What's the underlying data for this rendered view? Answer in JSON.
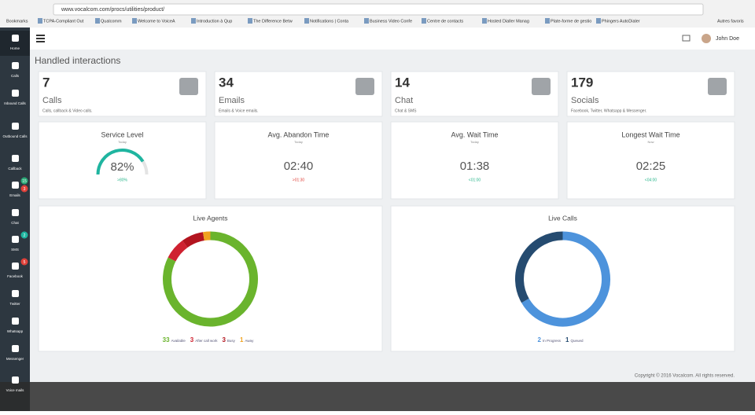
{
  "browser": {
    "url": "www.vocalcom.com/procs/utilities/product/",
    "bookmarks": [
      "Bookmarks",
      "TCPA-Compliant Out",
      "Qualcomm",
      "Welcome to VoiceA",
      "Introduction à Qup",
      "The Difference Betw",
      "Notifications | Conta",
      "Business Video Confe",
      "Centre de contacts",
      "Hosted Dialler Manag",
      "Plate-forme de gestio",
      "Phingers AutoDialer"
    ],
    "other_bookmarks": "Autres favoris"
  },
  "sidebar": [
    {
      "label": "Home"
    },
    {
      "label": "Calls"
    },
    {
      "label": "Inbound Calls"
    },
    {
      "label": "Outbound Calls"
    },
    {
      "label": "Callback"
    },
    {
      "label": "Emails",
      "badges": [
        {
          "text": "15",
          "color": "#2aa876"
        },
        {
          "text": "3",
          "color": "#e0413a"
        }
      ]
    },
    {
      "label": "Chat"
    },
    {
      "label": "SMS",
      "badges": [
        {
          "text": "2",
          "color": "#1fb5a0"
        }
      ]
    },
    {
      "label": "Facebook",
      "badges": [
        {
          "text": "5",
          "color": "#e0413a"
        }
      ]
    },
    {
      "label": "Twitter"
    },
    {
      "label": "Whatsapp"
    },
    {
      "label": "Messenger"
    },
    {
      "label": "Voice mails"
    }
  ],
  "header": {
    "user": "John Doe"
  },
  "page_title": "Handled interactions",
  "stats": [
    {
      "value": "7",
      "label": "Calls",
      "desc": "Calls, callback & Video calls."
    },
    {
      "value": "34",
      "label": "Emails",
      "desc": "Emails & Voice emails."
    },
    {
      "value": "14",
      "label": "Chat",
      "desc": "Chat & SMS"
    },
    {
      "value": "179",
      "label": "Socials",
      "desc": "Facebook, Twitter, Whatsapp & Messenger."
    }
  ],
  "kpis": [
    {
      "title": "Service Level",
      "period": "Today",
      "value": 82,
      "value_label": "82%",
      "target": ">80%",
      "color": "#2bb68c"
    },
    {
      "title": "Avg. Abandon Time",
      "period": "Today",
      "value": "02:40",
      "target": ">01:30",
      "color": "#e0413a"
    },
    {
      "title": "Avg. Wait Time",
      "period": "Today",
      "value": "01:38",
      "target": "<01:00",
      "color": "#2bb68c"
    },
    {
      "title": "Longest Wait Time",
      "period": "Now",
      "value": "02:25",
      "target": "<04:00",
      "color": "#2bb68c"
    }
  ],
  "charts": [
    {
      "type": "donut",
      "title": "Live Agents",
      "series": [
        {
          "name": "Available",
          "value": 33,
          "color": "#6ab42d"
        },
        {
          "name": "After call work",
          "value": 3,
          "color": "#cf2130"
        },
        {
          "name": "Busy",
          "value": 3,
          "color": "#b3141f"
        },
        {
          "name": "Away",
          "value": 1,
          "color": "#f0a21e"
        }
      ]
    },
    {
      "type": "donut",
      "title": "Live Calls",
      "series": [
        {
          "name": "In Progress",
          "value": 2,
          "color": "#4d93dc"
        },
        {
          "name": "Queued",
          "value": 1,
          "color": "#254b70"
        }
      ]
    }
  ],
  "footer": "Copyright © 2016 Vocalcom. All rights reserved."
}
